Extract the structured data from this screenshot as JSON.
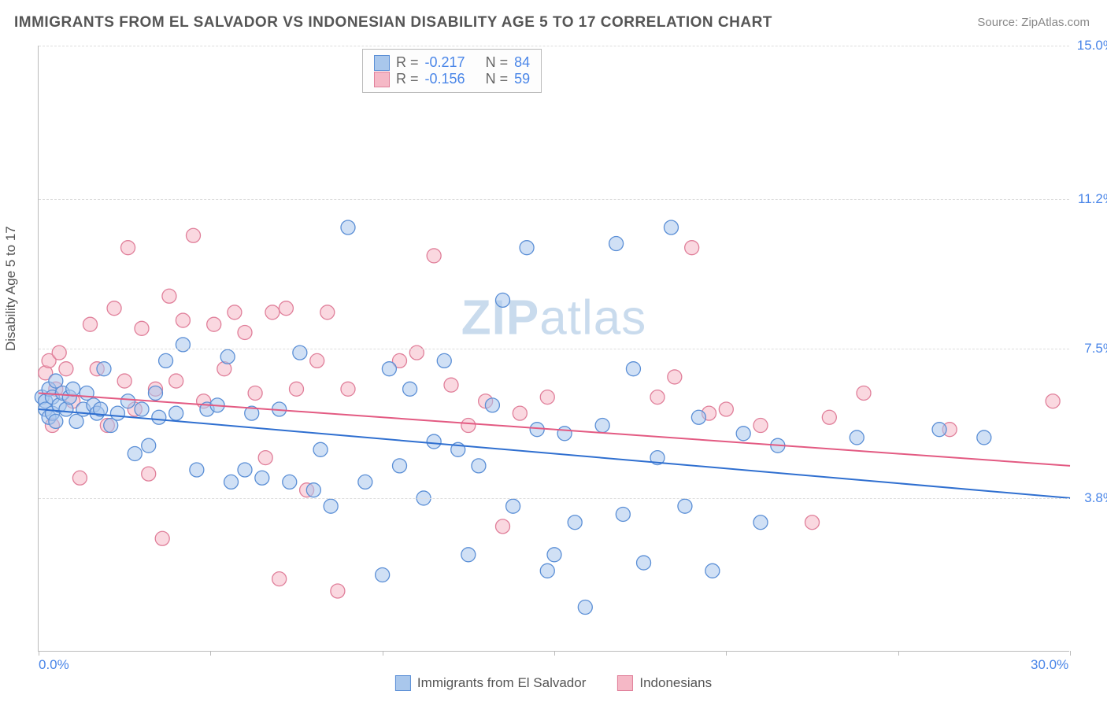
{
  "title": "IMMIGRANTS FROM EL SALVADOR VS INDONESIAN DISABILITY AGE 5 TO 17 CORRELATION CHART",
  "source_label": "Source:",
  "source_value": "ZipAtlas.com",
  "ylabel": "Disability Age 5 to 17",
  "watermark_bold": "ZIP",
  "watermark_light": "atlas",
  "chart": {
    "type": "scatter",
    "xlim": [
      0,
      30
    ],
    "ylim": [
      0,
      15
    ],
    "x_ticks": [
      0,
      5,
      10,
      15,
      20,
      25,
      30
    ],
    "x_tick_labels": {
      "0": "0.0%",
      "30": "30.0%"
    },
    "y_ticks": [
      3.8,
      7.5,
      11.2,
      15.0
    ],
    "y_tick_labels": [
      "3.8%",
      "7.5%",
      "11.2%",
      "15.0%"
    ],
    "grid_color": "#dddddd",
    "axis_color": "#bbbbbb",
    "background_color": "#ffffff",
    "series": [
      {
        "name": "Immigrants from El Salvador",
        "fill": "#a9c7ec",
        "stroke": "#5b8fd6",
        "fill_opacity": 0.55,
        "marker_radius": 9,
        "R": "-0.217",
        "N": "84",
        "trend": {
          "y_at_x0": 6.0,
          "y_at_xmax": 3.8,
          "stroke": "#2f6fd0",
          "width": 2
        },
        "points": [
          [
            0.1,
            6.3
          ],
          [
            0.2,
            6.2
          ],
          [
            0.2,
            6.0
          ],
          [
            0.3,
            6.5
          ],
          [
            0.3,
            5.8
          ],
          [
            0.4,
            6.3
          ],
          [
            0.4,
            5.9
          ],
          [
            0.5,
            6.7
          ],
          [
            0.5,
            5.7
          ],
          [
            0.6,
            6.1
          ],
          [
            0.7,
            6.4
          ],
          [
            0.8,
            6.0
          ],
          [
            0.9,
            6.3
          ],
          [
            1.0,
            6.5
          ],
          [
            1.1,
            5.7
          ],
          [
            1.3,
            6.0
          ],
          [
            1.4,
            6.4
          ],
          [
            1.6,
            6.1
          ],
          [
            1.7,
            5.9
          ],
          [
            1.8,
            6.0
          ],
          [
            1.9,
            7.0
          ],
          [
            2.1,
            5.6
          ],
          [
            2.3,
            5.9
          ],
          [
            2.6,
            6.2
          ],
          [
            2.8,
            4.9
          ],
          [
            3.0,
            6.0
          ],
          [
            3.2,
            5.1
          ],
          [
            3.4,
            6.4
          ],
          [
            3.5,
            5.8
          ],
          [
            3.7,
            7.2
          ],
          [
            4.0,
            5.9
          ],
          [
            4.2,
            7.6
          ],
          [
            4.6,
            4.5
          ],
          [
            4.9,
            6.0
          ],
          [
            5.2,
            6.1
          ],
          [
            5.5,
            7.3
          ],
          [
            5.6,
            4.2
          ],
          [
            6.0,
            4.5
          ],
          [
            6.2,
            5.9
          ],
          [
            6.5,
            4.3
          ],
          [
            7.0,
            6.0
          ],
          [
            7.3,
            4.2
          ],
          [
            7.6,
            7.4
          ],
          [
            8.0,
            4.0
          ],
          [
            8.2,
            5.0
          ],
          [
            8.5,
            3.6
          ],
          [
            9.0,
            10.5
          ],
          [
            9.5,
            4.2
          ],
          [
            10.0,
            1.9
          ],
          [
            10.2,
            7.0
          ],
          [
            10.5,
            4.6
          ],
          [
            10.8,
            6.5
          ],
          [
            11.2,
            3.8
          ],
          [
            11.5,
            5.2
          ],
          [
            11.8,
            7.2
          ],
          [
            12.2,
            5.0
          ],
          [
            12.5,
            2.4
          ],
          [
            12.8,
            4.6
          ],
          [
            13.2,
            6.1
          ],
          [
            13.5,
            8.7
          ],
          [
            13.8,
            3.6
          ],
          [
            14.2,
            10.0
          ],
          [
            14.5,
            5.5
          ],
          [
            14.8,
            2.0
          ],
          [
            15.0,
            2.4
          ],
          [
            15.3,
            5.4
          ],
          [
            15.6,
            3.2
          ],
          [
            15.9,
            1.1
          ],
          [
            16.4,
            5.6
          ],
          [
            16.8,
            10.1
          ],
          [
            17.0,
            3.4
          ],
          [
            17.3,
            7.0
          ],
          [
            17.6,
            2.2
          ],
          [
            18.0,
            4.8
          ],
          [
            18.4,
            10.5
          ],
          [
            18.8,
            3.6
          ],
          [
            19.2,
            5.8
          ],
          [
            19.6,
            2.0
          ],
          [
            20.5,
            5.4
          ],
          [
            21.0,
            3.2
          ],
          [
            21.5,
            5.1
          ],
          [
            23.8,
            5.3
          ],
          [
            26.2,
            5.5
          ],
          [
            27.5,
            5.3
          ]
        ]
      },
      {
        "name": "Indonesians",
        "fill": "#f5b8c6",
        "stroke": "#e07f9a",
        "fill_opacity": 0.55,
        "marker_radius": 9,
        "R": "-0.156",
        "N": "59",
        "trend": {
          "y_at_x0": 6.4,
          "y_at_xmax": 4.6,
          "stroke": "#e35a82",
          "width": 2
        },
        "points": [
          [
            0.2,
            6.9
          ],
          [
            0.3,
            7.2
          ],
          [
            0.4,
            5.6
          ],
          [
            0.5,
            6.5
          ],
          [
            0.6,
            7.4
          ],
          [
            0.8,
            7.0
          ],
          [
            1.0,
            6.2
          ],
          [
            1.2,
            4.3
          ],
          [
            1.5,
            8.1
          ],
          [
            1.7,
            7.0
          ],
          [
            2.0,
            5.6
          ],
          [
            2.2,
            8.5
          ],
          [
            2.5,
            6.7
          ],
          [
            2.6,
            10.0
          ],
          [
            2.8,
            6.0
          ],
          [
            3.0,
            8.0
          ],
          [
            3.2,
            4.4
          ],
          [
            3.4,
            6.5
          ],
          [
            3.6,
            2.8
          ],
          [
            3.8,
            8.8
          ],
          [
            4.0,
            6.7
          ],
          [
            4.2,
            8.2
          ],
          [
            4.5,
            10.3
          ],
          [
            4.8,
            6.2
          ],
          [
            5.1,
            8.1
          ],
          [
            5.4,
            7.0
          ],
          [
            5.7,
            8.4
          ],
          [
            6.0,
            7.9
          ],
          [
            6.3,
            6.4
          ],
          [
            6.6,
            4.8
          ],
          [
            6.8,
            8.4
          ],
          [
            7.0,
            1.8
          ],
          [
            7.2,
            8.5
          ],
          [
            7.5,
            6.5
          ],
          [
            7.8,
            4.0
          ],
          [
            8.1,
            7.2
          ],
          [
            8.4,
            8.4
          ],
          [
            8.7,
            1.5
          ],
          [
            9.0,
            6.5
          ],
          [
            10.5,
            7.2
          ],
          [
            11.0,
            7.4
          ],
          [
            11.5,
            9.8
          ],
          [
            12.0,
            6.6
          ],
          [
            12.5,
            5.6
          ],
          [
            13.0,
            6.2
          ],
          [
            13.5,
            3.1
          ],
          [
            14.0,
            5.9
          ],
          [
            14.8,
            6.3
          ],
          [
            18.0,
            6.3
          ],
          [
            18.5,
            6.8
          ],
          [
            19.0,
            10.0
          ],
          [
            19.5,
            5.9
          ],
          [
            20.0,
            6.0
          ],
          [
            21.0,
            5.6
          ],
          [
            22.5,
            3.2
          ],
          [
            23.0,
            5.8
          ],
          [
            24.0,
            6.4
          ],
          [
            26.5,
            5.5
          ],
          [
            29.5,
            6.2
          ]
        ]
      }
    ]
  },
  "corr_legend": {
    "r_label": "R =",
    "n_label": "N ="
  },
  "bottom_legend": {}
}
